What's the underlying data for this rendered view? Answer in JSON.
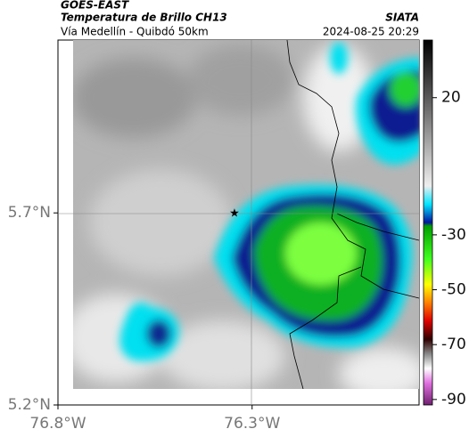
{
  "header": {
    "source": "GOES-EAST",
    "title": "Temperatura de Brillo CH13",
    "subtitle": "Vía Medellín - Quibdó 50km",
    "brand": "SIATA",
    "datetime": "2024-08-25 20:29"
  },
  "map": {
    "lat_range": [
      5.2,
      6.15
    ],
    "lon_range": [
      -76.8,
      -75.87
    ],
    "lat_ticks": [
      {
        "value": 5.7,
        "label": "5.7°N"
      },
      {
        "value": 5.2,
        "label": "5.2°N"
      }
    ],
    "lon_ticks": [
      {
        "value": -76.8,
        "label": "76.8°W"
      },
      {
        "value": -76.3,
        "label": "76.3°W"
      }
    ],
    "colorbar": {
      "range": [
        -92,
        41
      ],
      "ticks": [
        20,
        -30,
        -50,
        -70,
        -90
      ]
    }
  }
}
